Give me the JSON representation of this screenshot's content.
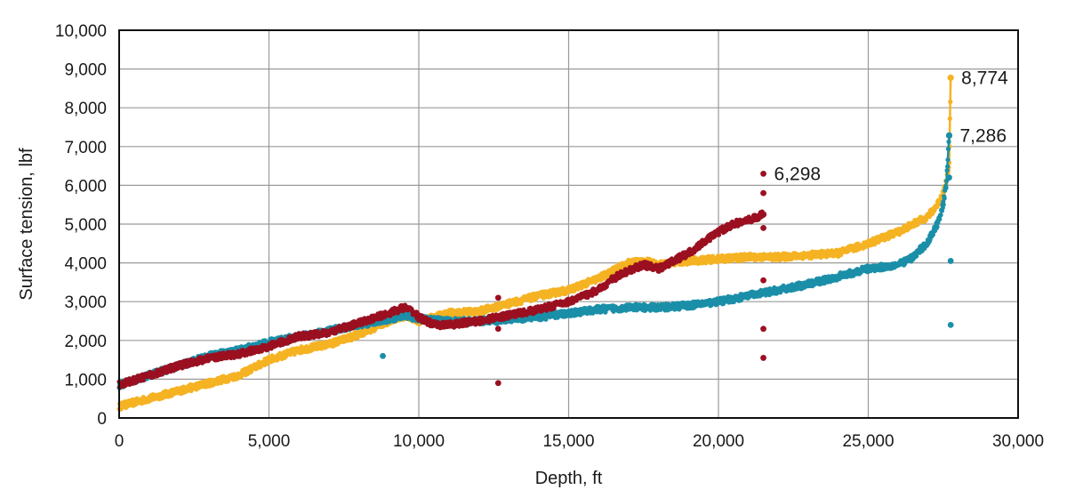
{
  "chart_data": {
    "type": "scatter",
    "title": "",
    "xlabel": "Depth, ft",
    "ylabel": "Surface tension, lbf",
    "xlim": [
      0,
      30000
    ],
    "ylim": [
      0,
      10000
    ],
    "x_ticks": [
      0,
      5000,
      10000,
      15000,
      20000,
      25000,
      30000
    ],
    "x_tick_labels": [
      "0",
      "5,000",
      "10,000",
      "15,000",
      "20,000",
      "25,000",
      "30,000"
    ],
    "y_ticks": [
      0,
      1000,
      2000,
      3000,
      4000,
      5000,
      6000,
      7000,
      8000,
      9000,
      10000
    ],
    "y_tick_labels": [
      "0",
      "1,000",
      "2,000",
      "3,000",
      "4,000",
      "5,000",
      "6,000",
      "7,000",
      "8,000",
      "9,000",
      "10,000"
    ],
    "grid": true,
    "legend": "none",
    "series": [
      {
        "name": "yellow series",
        "color": "#F5B323",
        "x": [
          0,
          1000,
          2000,
          3000,
          4000,
          5000,
          6000,
          7000,
          8000,
          9000,
          9600,
          10000,
          11000,
          12000,
          13000,
          14000,
          15000,
          16000,
          17000,
          17500,
          18000,
          19000,
          20000,
          21000,
          22000,
          23000,
          24000,
          25000,
          26000,
          26500,
          27000,
          27300,
          27500,
          27600,
          27700,
          27750
        ],
        "y": [
          300,
          500,
          700,
          900,
          1100,
          1500,
          1750,
          1900,
          2150,
          2500,
          2650,
          2500,
          2700,
          2750,
          2950,
          3150,
          3300,
          3600,
          4000,
          4050,
          3950,
          4050,
          4100,
          4150,
          4150,
          4200,
          4250,
          4500,
          4800,
          5000,
          5200,
          5500,
          5800,
          6100,
          6500,
          8774
        ],
        "outliers": []
      },
      {
        "name": "blue series",
        "color": "#1B8FA8",
        "x": [
          0,
          1000,
          2000,
          3000,
          4000,
          5000,
          6000,
          7000,
          8000,
          9000,
          9600,
          10000,
          11000,
          12000,
          13000,
          14000,
          15000,
          16000,
          17000,
          18000,
          19000,
          20000,
          21000,
          22000,
          23000,
          24000,
          25000,
          26000,
          26500,
          27000,
          27300,
          27500,
          27600,
          27700
        ],
        "y": [
          850,
          1100,
          1350,
          1600,
          1750,
          1950,
          2100,
          2250,
          2400,
          2550,
          2650,
          2550,
          2500,
          2500,
          2550,
          2600,
          2700,
          2800,
          2850,
          2850,
          2900,
          3000,
          3150,
          3300,
          3450,
          3650,
          3850,
          3950,
          4150,
          4550,
          5000,
          5500,
          6000,
          7286
        ],
        "outliers": [
          [
            8800,
            1600
          ],
          [
            12600,
            2450
          ],
          [
            27750,
            4050
          ],
          [
            27750,
            2400
          ],
          [
            27700,
            6200
          ]
        ]
      },
      {
        "name": "red series",
        "color": "#9B1020",
        "x": [
          0,
          1000,
          2000,
          3000,
          4000,
          5000,
          6000,
          7000,
          8000,
          9000,
          9500,
          9800,
          10000,
          10500,
          11000,
          12000,
          13000,
          14000,
          15000,
          16000,
          16500,
          17000,
          17500,
          18000,
          19000,
          20000,
          20500,
          21000,
          21500
        ],
        "y": [
          850,
          1100,
          1350,
          1550,
          1650,
          1850,
          2100,
          2200,
          2450,
          2700,
          2850,
          2750,
          2600,
          2400,
          2400,
          2500,
          2650,
          2800,
          3000,
          3300,
          3600,
          3800,
          3950,
          3850,
          4250,
          4800,
          5000,
          5100,
          5250
        ],
        "outliers": [
          [
            12650,
            3100
          ],
          [
            12650,
            2300
          ],
          [
            12650,
            900
          ],
          [
            21500,
            6298
          ],
          [
            21500,
            5800
          ],
          [
            21500,
            4900
          ],
          [
            21500,
            3550
          ],
          [
            21500,
            2300
          ],
          [
            21500,
            1550
          ]
        ]
      }
    ],
    "annotations": [
      {
        "label": "6,298",
        "x": 21500,
        "y": 6298,
        "color": "#9B1020"
      },
      {
        "label": "8,774",
        "x": 27750,
        "y": 8774,
        "color": "#F5B323"
      },
      {
        "label": "7,286",
        "x": 27700,
        "y": 7286,
        "color": "#1B8FA8"
      }
    ]
  }
}
